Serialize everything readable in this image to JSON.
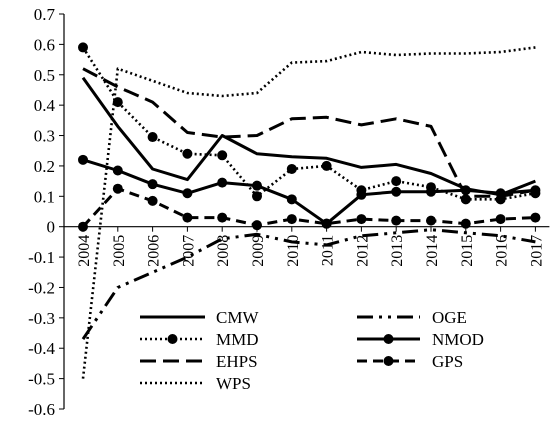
{
  "chart_data": {
    "type": "line",
    "title": "",
    "xlabel": "",
    "ylabel": "",
    "ylim": [
      -0.6,
      0.7
    ],
    "ytick_step": 0.1,
    "grid": false,
    "legend_position": "bottom-center, two columns inside plot",
    "x": [
      "2004",
      "2005",
      "2006",
      "2007",
      "2008",
      "2009",
      "2010",
      "2011",
      "2012",
      "2013",
      "2014",
      "2015",
      "2016",
      "2017"
    ],
    "series": [
      {
        "name": "CMW",
        "style": "solid",
        "marker": false,
        "values": [
          0.49,
          0.33,
          0.19,
          0.155,
          0.3,
          0.24,
          0.23,
          0.225,
          0.195,
          0.205,
          0.175,
          0.125,
          0.105,
          0.15
        ]
      },
      {
        "name": "OGE",
        "style": "dash-dot-dot",
        "marker": false,
        "values": [
          -0.37,
          -0.2,
          -0.15,
          -0.1,
          -0.04,
          -0.025,
          -0.05,
          -0.06,
          -0.03,
          -0.02,
          -0.01,
          -0.02,
          -0.03,
          -0.05
        ]
      },
      {
        "name": "MMD",
        "style": "dotted",
        "marker": true,
        "values": [
          0.59,
          0.41,
          0.295,
          0.24,
          0.235,
          0.1,
          0.19,
          0.2,
          0.12,
          0.15,
          0.13,
          0.09,
          0.09,
          0.11
        ]
      },
      {
        "name": "NMOD",
        "style": "solid",
        "marker": true,
        "values": [
          0.22,
          0.185,
          0.14,
          0.11,
          0.145,
          0.135,
          0.09,
          0.01,
          0.105,
          0.115,
          0.115,
          0.12,
          0.11,
          0.12
        ]
      },
      {
        "name": "EHPS",
        "style": "long-dash",
        "marker": false,
        "values": [
          0.52,
          0.46,
          0.41,
          0.31,
          0.295,
          0.3,
          0.355,
          0.36,
          0.335,
          0.355,
          0.33,
          0.1,
          0.1,
          0.12
        ]
      },
      {
        "name": "GPS",
        "style": "dashed",
        "marker": true,
        "values": [
          0.0,
          0.125,
          0.085,
          0.03,
          0.03,
          0.005,
          0.025,
          0.01,
          0.025,
          0.02,
          0.02,
          0.01,
          0.025,
          0.03
        ]
      },
      {
        "name": "WPS",
        "style": "dotted",
        "marker": false,
        "values": [
          -0.5,
          0.52,
          0.48,
          0.44,
          0.43,
          0.44,
          0.54,
          0.545,
          0.575,
          0.565,
          0.57,
          0.57,
          0.575,
          0.59
        ]
      }
    ]
  }
}
